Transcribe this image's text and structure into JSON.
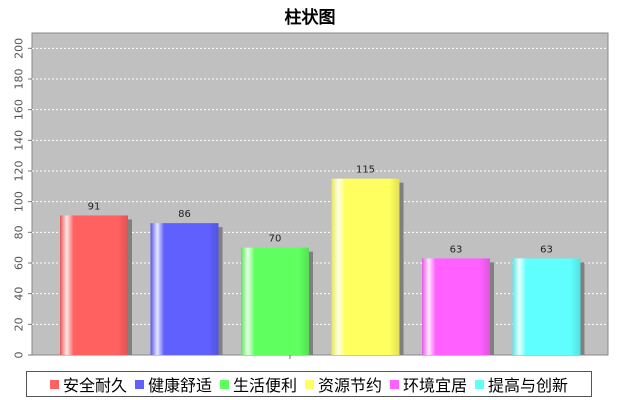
{
  "chart_data": {
    "type": "bar",
    "title": "柱状图",
    "xlabel": "",
    "ylabel": "",
    "categories": [
      "安全耐久",
      "健康舒适",
      "生活便利",
      "资源节约",
      "环境宜居",
      "提高与创新"
    ],
    "values": [
      91,
      86,
      70,
      115,
      63,
      63
    ],
    "colors": [
      "#ff6060",
      "#6060ff",
      "#60ff60",
      "#ffff60",
      "#ff60ff",
      "#60ffff"
    ],
    "ylim": [
      0,
      210
    ],
    "yticks": [
      0,
      20,
      40,
      60,
      80,
      100,
      120,
      140,
      160,
      180,
      200
    ],
    "grid": true,
    "legend": "bottom",
    "plot_background": "#c0c0c0"
  }
}
